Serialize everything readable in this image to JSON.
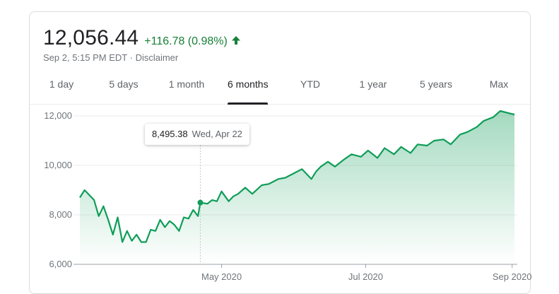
{
  "quote": {
    "price": "12,056.44",
    "change": "+116.78 (0.98%)",
    "timestamp": "Sep 2, 5:15 PM EDT",
    "separator": " · ",
    "disclaimer": "Disclaimer",
    "trend_icon": "arrow-up-icon",
    "up_color": "#188038"
  },
  "tabs": [
    {
      "label": "1 day",
      "active": false
    },
    {
      "label": "5 days",
      "active": false
    },
    {
      "label": "1 month",
      "active": false
    },
    {
      "label": "6 months",
      "active": true
    },
    {
      "label": "YTD",
      "active": false
    },
    {
      "label": "1 year",
      "active": false
    },
    {
      "label": "5 years",
      "active": false
    },
    {
      "label": "Max",
      "active": false
    }
  ],
  "tooltip": {
    "value": "8,495.38",
    "date": "Wed, Apr 22"
  },
  "chart_data": {
    "type": "area",
    "title": "",
    "xlabel": "",
    "ylabel": "",
    "ylim": [
      6000,
      12400
    ],
    "grid": true,
    "line_color": "#0f9d58",
    "fill_color": "#0f9d58",
    "y_ticks": [
      {
        "value": 6000,
        "label": "6,000"
      },
      {
        "value": 8000,
        "label": "8,000"
      },
      {
        "value": 10000,
        "label": "10,000"
      },
      {
        "value": 12000,
        "label": "12,000"
      }
    ],
    "x_ticks": [
      {
        "value": "2020-05-01",
        "label": "May 2020"
      },
      {
        "value": "2020-07-01",
        "label": "Jul 2020"
      },
      {
        "value": "2020-09-01",
        "label": "Sep 2020"
      }
    ],
    "x_range": [
      "2020-03-02",
      "2020-09-02"
    ],
    "hover": {
      "x": "2020-04-22",
      "y": 8495.38
    },
    "series": [
      {
        "x": [
          "2020-03-02",
          "2020-03-04",
          "2020-03-06",
          "2020-03-08",
          "2020-03-10",
          "2020-03-12",
          "2020-03-14",
          "2020-03-16",
          "2020-03-18",
          "2020-03-20",
          "2020-03-22",
          "2020-03-24",
          "2020-03-26",
          "2020-03-28",
          "2020-03-30",
          "2020-04-01",
          "2020-04-03",
          "2020-04-05",
          "2020-04-07",
          "2020-04-09",
          "2020-04-11",
          "2020-04-13",
          "2020-04-15",
          "2020-04-17",
          "2020-04-19",
          "2020-04-21",
          "2020-04-22",
          "2020-04-25",
          "2020-04-27",
          "2020-04-29",
          "2020-05-01",
          "2020-05-04",
          "2020-05-06",
          "2020-05-08",
          "2020-05-11",
          "2020-05-14",
          "2020-05-18",
          "2020-05-21",
          "2020-05-25",
          "2020-05-28",
          "2020-06-01",
          "2020-06-04",
          "2020-06-08",
          "2020-06-10",
          "2020-06-12",
          "2020-06-15",
          "2020-06-18",
          "2020-06-22",
          "2020-06-25",
          "2020-06-29",
          "2020-07-02",
          "2020-07-06",
          "2020-07-09",
          "2020-07-13",
          "2020-07-16",
          "2020-07-20",
          "2020-07-23",
          "2020-07-27",
          "2020-07-30",
          "2020-08-03",
          "2020-08-06",
          "2020-08-10",
          "2020-08-13",
          "2020-08-17",
          "2020-08-20",
          "2020-08-24",
          "2020-08-27",
          "2020-08-31",
          "2020-09-02"
        ],
        "y": [
          8700,
          9000,
          8800,
          8600,
          7950,
          8350,
          7800,
          7200,
          7900,
          6900,
          7350,
          6950,
          7200,
          6900,
          6900,
          7400,
          7350,
          7800,
          7500,
          7750,
          7600,
          7350,
          7900,
          7850,
          8200,
          7950,
          8495,
          8450,
          8600,
          8550,
          8950,
          8550,
          8750,
          8850,
          9100,
          8850,
          9200,
          9250,
          9450,
          9500,
          9700,
          9850,
          9450,
          9750,
          9950,
          10150,
          9950,
          10250,
          10450,
          10350,
          10600,
          10300,
          10700,
          10450,
          10750,
          10500,
          10850,
          10800,
          11000,
          11050,
          10850,
          11250,
          11350,
          11550,
          11800,
          11950,
          12200,
          12100,
          12056.44
        ]
      }
    ]
  }
}
